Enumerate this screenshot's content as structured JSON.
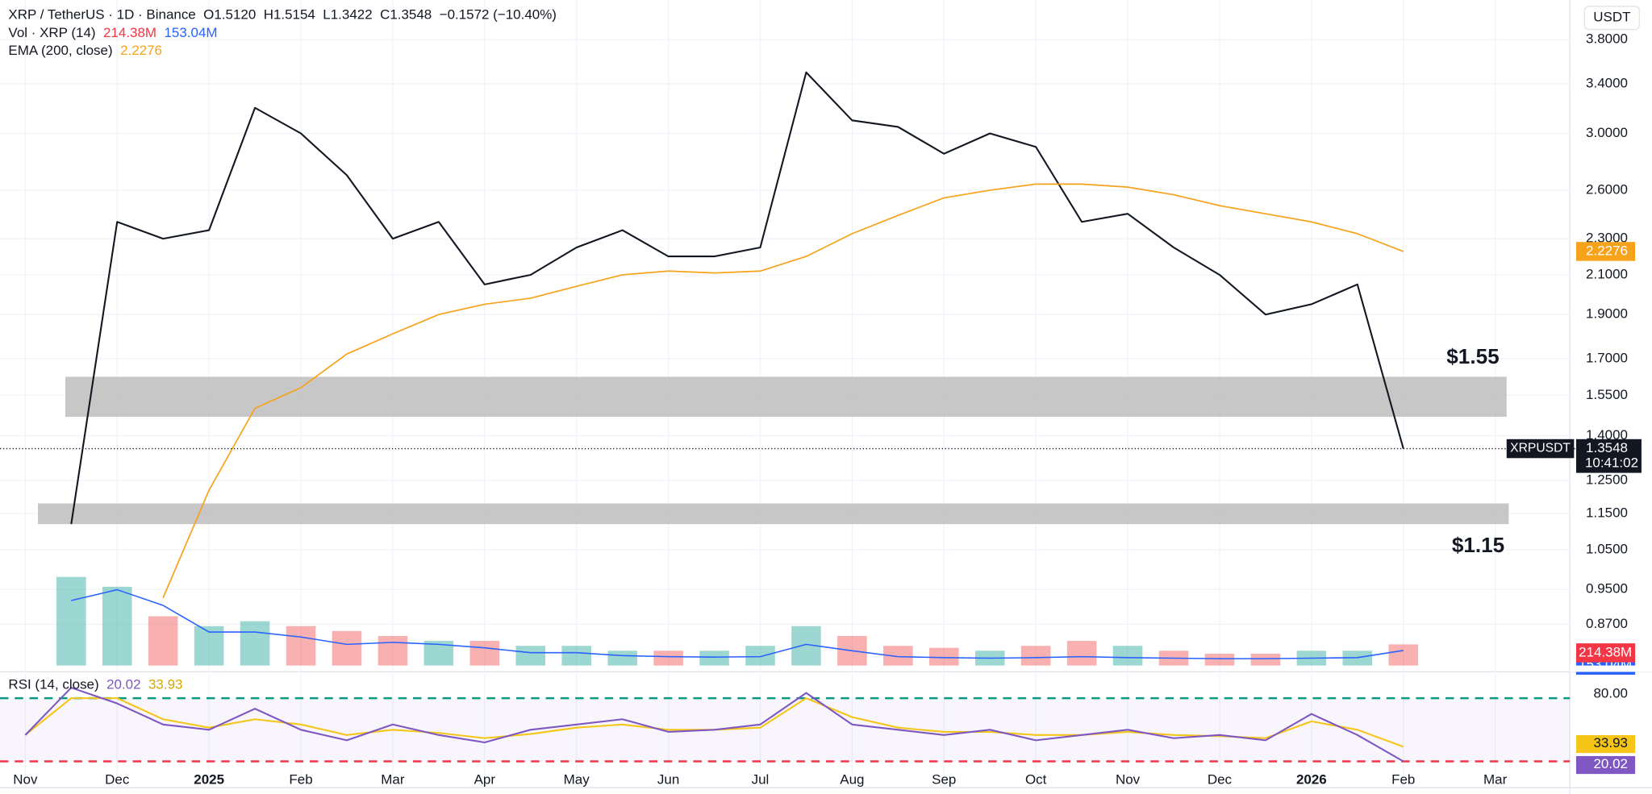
{
  "header": {
    "symbol": "XRP / TetherUS · 1D · Binance",
    "open": "O1.5120",
    "high": "H1.5154",
    "low": "L1.3422",
    "close": "C1.3548",
    "change": "−0.1572 (−10.40%)",
    "currency": "USDT"
  },
  "chart_data": [
    {
      "type": "line",
      "log_scale": true,
      "grid": true,
      "categories": [
        "Nov",
        null,
        "Dec",
        null,
        "2025",
        null,
        "Feb",
        null,
        "Mar",
        null,
        "Apr",
        null,
        "May",
        null,
        "Jun",
        null,
        "Jul",
        null,
        "Aug",
        null,
        "Sep",
        null,
        "Oct",
        null,
        "Nov",
        null,
        "Dec",
        null,
        "2026",
        null,
        "Feb",
        null,
        "Mar"
      ],
      "series": [
        {
          "name": "XRPUSDT",
          "color": "#131722",
          "values": [
            null,
            1.12,
            2.4,
            2.3,
            2.35,
            3.2,
            3.0,
            2.7,
            2.3,
            2.4,
            2.05,
            2.1,
            2.25,
            2.35,
            2.2,
            2.2,
            2.25,
            3.5,
            3.1,
            3.05,
            2.85,
            3.0,
            2.9,
            2.4,
            2.45,
            2.25,
            2.1,
            1.9,
            1.95,
            2.05,
            1.3548,
            null,
            null
          ]
        },
        {
          "name": "EMA (200, close)",
          "color": "#f7a21b",
          "values": [
            null,
            null,
            null,
            0.93,
            1.22,
            1.5,
            1.58,
            1.72,
            1.81,
            1.9,
            1.95,
            1.98,
            2.04,
            2.1,
            2.12,
            2.11,
            2.12,
            2.2,
            2.33,
            2.44,
            2.55,
            2.6,
            2.64,
            2.64,
            2.62,
            2.57,
            2.5,
            2.45,
            2.4,
            2.33,
            2.2276,
            null,
            null
          ]
        }
      ],
      "ylim": [
        0.784,
        4.2
      ],
      "yticks": [
        {
          "value": 3.8,
          "label": "3.8000"
        },
        {
          "value": 3.4,
          "label": "3.4000"
        },
        {
          "value": 3.0,
          "label": "3.0000"
        },
        {
          "value": 2.6,
          "label": "2.6000"
        },
        {
          "value": 2.3,
          "label": "2.3000"
        },
        {
          "value": 2.1,
          "label": "2.1000"
        },
        {
          "value": 1.9,
          "label": "1.9000"
        },
        {
          "value": 1.7,
          "label": "1.7000"
        },
        {
          "value": 1.55,
          "label": "1.5500"
        },
        {
          "value": 1.4,
          "label": "1.4000"
        },
        {
          "value": 1.25,
          "label": "1.2500"
        },
        {
          "value": 1.15,
          "label": "1.1500"
        },
        {
          "value": 1.05,
          "label": "1.0500"
        },
        {
          "value": 0.95,
          "label": "0.9500"
        },
        {
          "value": 0.87,
          "label": "0.8700"
        }
      ],
      "countdown": "10:41:02",
      "zones": [
        {
          "label": "$1.55",
          "top": 1.624,
          "bottom": 1.468,
          "color": "#bdbdbd"
        },
        {
          "label": "$1.15",
          "top": 1.18,
          "bottom": 1.12,
          "color": "#bdbdbd"
        }
      ]
    },
    {
      "type": "bar",
      "title": "Vol · XRP (14)",
      "ylim": [
        0,
        1700
      ],
      "colors": {
        "up": "#26a69a",
        "down": "#ef5350"
      },
      "series": [
        {
          "name": "Volume",
          "values": [
            null,
            900,
            800,
            500,
            400,
            450,
            400,
            350,
            300,
            250,
            250,
            200,
            200,
            150,
            150,
            150,
            200,
            400,
            300,
            200,
            180,
            150,
            200,
            250,
            200,
            150,
            120,
            120,
            150,
            150,
            214.38,
            null,
            null
          ],
          "last_label": "214.38M",
          "color": "#f23645"
        },
        {
          "values": [
            null,
            660,
            770,
            610,
            340,
            340,
            290,
            215,
            235,
            215,
            180,
            130,
            130,
            100,
            90,
            85,
            90,
            215,
            150,
            90,
            80,
            75,
            80,
            90,
            80,
            75,
            70,
            70,
            75,
            80,
            153.04,
            null,
            null
          ],
          "last_label": "153.04M",
          "color": "#2962ff"
        }
      ]
    },
    {
      "type": "line",
      "title": "RSI (14, close)",
      "ylim": [
        0,
        100
      ],
      "yticks": [
        {
          "value": 80,
          "label": "80.00"
        }
      ],
      "bands": [
        {
          "value": 80,
          "color": "#089981"
        },
        {
          "value": 20,
          "color": "#f23645"
        }
      ],
      "series": [
        {
          "color": "#7e57c2",
          "values": [
            45,
            90,
            75,
            55,
            50,
            70,
            50,
            40,
            55,
            45,
            38,
            50,
            55,
            60,
            48,
            50,
            55,
            85,
            55,
            50,
            45,
            50,
            40,
            45,
            50,
            42,
            45,
            40,
            65,
            45,
            20.02,
            null,
            null
          ],
          "last_label": "20.02",
          "text_color": "#ffffff"
        },
        {
          "color": "#f5c518",
          "values": [
            45,
            80,
            80,
            60,
            52,
            60,
            55,
            45,
            50,
            47,
            42,
            46,
            52,
            55,
            50,
            50,
            52,
            80,
            62,
            52,
            48,
            48,
            45,
            45,
            48,
            45,
            44,
            42,
            58,
            50,
            33.93,
            null,
            null
          ],
          "last_label": "33.93",
          "text_color": "#131722"
        }
      ]
    }
  ]
}
